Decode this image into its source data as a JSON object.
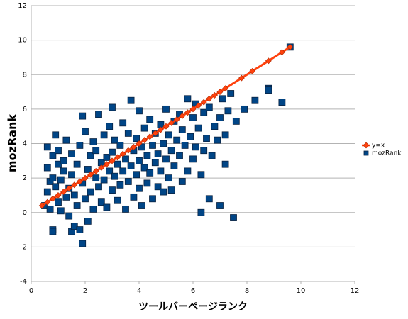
{
  "chart_data": {
    "type": "scatter",
    "x_label": "ツールバーページランク",
    "y_label": "mozRank",
    "xlim": [
      0,
      12
    ],
    "xticks": [
      0,
      2,
      4,
      6,
      8,
      10,
      12
    ],
    "ylim": [
      -4,
      12
    ],
    "yticks": [
      -4,
      -2,
      0,
      2,
      4,
      6,
      8,
      10,
      12
    ],
    "grid": true,
    "legend": "right",
    "series": [
      {
        "name": "y=x",
        "color": "#ff420e",
        "marker": "diamond",
        "line": true,
        "x": [
          0.4,
          0.6,
          0.8,
          1.0,
          1.2,
          1.4,
          1.6,
          1.8,
          2.0,
          2.2,
          2.4,
          2.6,
          2.8,
          3.0,
          3.2,
          3.4,
          3.6,
          3.8,
          4.0,
          4.2,
          4.4,
          4.6,
          4.8,
          5.0,
          5.2,
          5.4,
          5.6,
          5.8,
          6.0,
          6.2,
          6.4,
          6.6,
          6.8,
          7.0,
          7.2,
          7.8,
          8.2,
          8.8,
          9.3,
          9.6
        ],
        "values": [
          0.4,
          0.6,
          0.8,
          1.0,
          1.2,
          1.4,
          1.6,
          1.8,
          2.0,
          2.2,
          2.4,
          2.6,
          2.8,
          3.0,
          3.2,
          3.4,
          3.6,
          3.8,
          4.0,
          4.2,
          4.4,
          4.6,
          4.8,
          5.0,
          5.2,
          5.4,
          5.6,
          5.8,
          6.0,
          6.2,
          6.4,
          6.6,
          6.8,
          7.0,
          7.2,
          7.8,
          8.2,
          8.8,
          9.3,
          9.6
        ]
      },
      {
        "name": "mozRank",
        "color": "#004586",
        "marker": "square",
        "line": false,
        "x": [
          0.5,
          0.6,
          0.6,
          0.6,
          0.7,
          0.7,
          0.8,
          0.8,
          0.8,
          0.8,
          0.9,
          0.9,
          1.0,
          1.0,
          1.0,
          1.1,
          1.1,
          1.2,
          1.2,
          1.3,
          1.3,
          1.4,
          1.4,
          1.5,
          1.5,
          1.5,
          1.6,
          1.6,
          1.7,
          1.7,
          1.8,
          1.8,
          1.9,
          1.9,
          1.9,
          2.0,
          2.0,
          2.1,
          2.1,
          2.2,
          2.2,
          2.3,
          2.3,
          2.4,
          2.4,
          2.5,
          2.5,
          2.6,
          2.6,
          2.7,
          2.7,
          2.8,
          2.8,
          2.9,
          2.9,
          3.0,
          3.0,
          3.0,
          3.1,
          3.1,
          3.2,
          3.2,
          3.3,
          3.3,
          3.4,
          3.4,
          3.5,
          3.5,
          3.6,
          3.6,
          3.7,
          3.7,
          3.8,
          3.8,
          3.9,
          3.9,
          4.0,
          4.0,
          4.0,
          4.1,
          4.1,
          4.2,
          4.2,
          4.3,
          4.3,
          4.4,
          4.4,
          4.5,
          4.5,
          4.6,
          4.6,
          4.7,
          4.7,
          4.8,
          4.8,
          4.9,
          4.9,
          5.0,
          5.0,
          5.1,
          5.1,
          5.2,
          5.2,
          5.3,
          5.3,
          5.4,
          5.5,
          5.5,
          5.6,
          5.6,
          5.7,
          5.8,
          5.8,
          5.9,
          6.0,
          6.0,
          6.1,
          6.1,
          6.2,
          6.3,
          6.3,
          6.4,
          6.4,
          6.5,
          6.6,
          6.6,
          6.7,
          6.8,
          6.9,
          7.0,
          7.0,
          7.1,
          7.2,
          7.2,
          7.3,
          7.4,
          7.5,
          7.6,
          7.9,
          8.3,
          8.8,
          8.8,
          9.3,
          9.6
        ],
        "values": [
          0.4,
          1.2,
          2.6,
          3.8,
          1.8,
          0.2,
          -1.0,
          -1.1,
          2.0,
          3.3,
          4.5,
          1.5,
          0.6,
          2.8,
          3.6,
          1.9,
          0.1,
          2.4,
          3.0,
          0.9,
          4.2,
          1.4,
          -0.2,
          -1.1,
          2.2,
          3.4,
          -0.8,
          1.0,
          2.8,
          0.4,
          -1.0,
          3.9,
          -1.8,
          5.6,
          1.7,
          4.7,
          0.8,
          -0.5,
          2.5,
          3.3,
          1.2,
          4.1,
          0.2,
          2.0,
          3.6,
          5.7,
          1.5,
          0.6,
          2.9,
          4.5,
          1.9,
          3.2,
          0.3,
          2.4,
          5.0,
          6.1,
          1.3,
          3.5,
          2.1,
          4.2,
          0.7,
          2.8,
          3.9,
          1.6,
          5.2,
          2.4,
          0.2,
          3.1,
          4.6,
          1.8,
          6.5,
          2.7,
          3.6,
          0.9,
          4.3,
          2.2,
          5.9,
          1.4,
          3.0,
          3.8,
          0.4,
          2.6,
          4.9,
          1.7,
          3.3,
          5.4,
          2.3,
          3.9,
          0.8,
          2.9,
          4.6,
          1.5,
          3.4,
          5.1,
          2.4,
          1.2,
          4.0,
          6.0,
          3.1,
          2.0,
          4.5,
          3.6,
          1.3,
          5.3,
          2.7,
          4.2,
          3.3,
          5.7,
          1.8,
          4.8,
          3.9,
          6.6,
          2.4,
          4.4,
          3.1,
          5.5,
          6.3,
          3.8,
          4.9,
          2.2,
          0.0,
          5.8,
          3.6,
          4.3,
          0.8,
          6.1,
          3.3,
          5.0,
          4.2,
          0.4,
          5.5,
          6.6,
          2.8,
          4.5,
          5.9,
          6.9,
          -0.3,
          5.3,
          6.0,
          6.5,
          7.2,
          7.1,
          6.4,
          9.6
        ]
      }
    ]
  }
}
